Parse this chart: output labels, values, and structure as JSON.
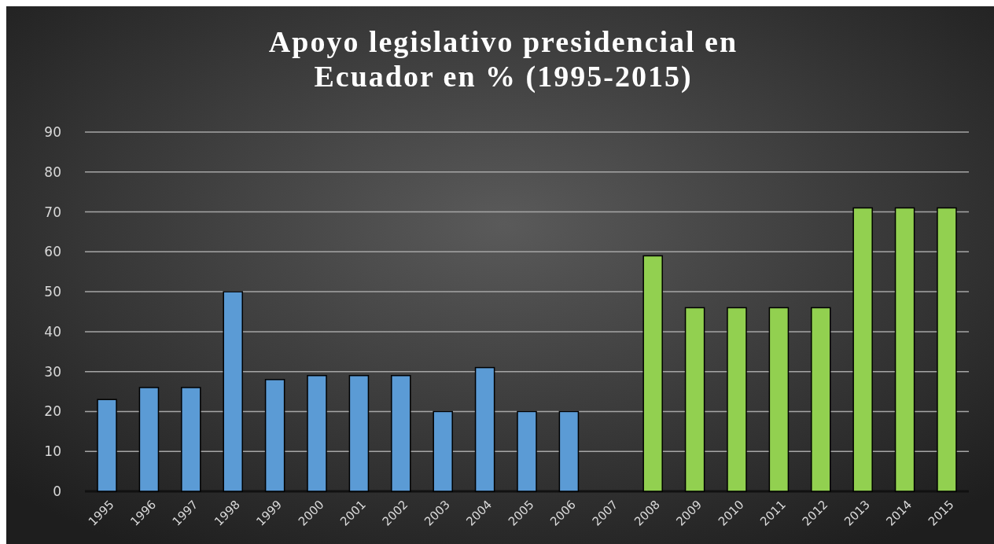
{
  "chart_data": {
    "type": "bar",
    "title": "Apoyo legislativo presidencial en Ecuador en % (1995-2015)",
    "categories": [
      "1995",
      "1996",
      "1997",
      "1998",
      "1999",
      "2000",
      "2001",
      "2002",
      "2003",
      "2004",
      "2005",
      "2006",
      "2007",
      "2008",
      "2009",
      "2010",
      "2011",
      "2012",
      "2013",
      "2014",
      "2015"
    ],
    "values": [
      23,
      26,
      26,
      50,
      28,
      29,
      29,
      29,
      20,
      31,
      20,
      20,
      0,
      59,
      46,
      46,
      46,
      46,
      71,
      71,
      71
    ],
    "colors": [
      "#5b9bd5",
      "#5b9bd5",
      "#5b9bd5",
      "#5b9bd5",
      "#5b9bd5",
      "#5b9bd5",
      "#5b9bd5",
      "#5b9bd5",
      "#5b9bd5",
      "#5b9bd5",
      "#5b9bd5",
      "#5b9bd5",
      "#5b9bd5",
      "#92d050",
      "#92d050",
      "#92d050",
      "#92d050",
      "#92d050",
      "#92d050",
      "#92d050",
      "#92d050"
    ],
    "ylim": [
      0,
      90
    ],
    "yticks": [
      0,
      10,
      20,
      30,
      40,
      50,
      60,
      70,
      80,
      90
    ],
    "grid": "y"
  }
}
